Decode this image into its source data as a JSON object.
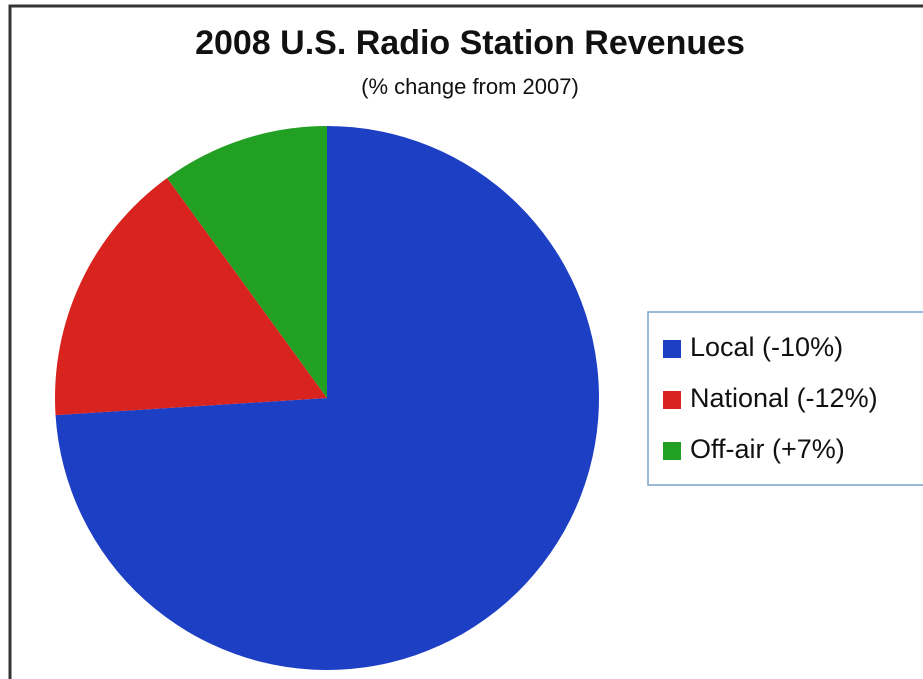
{
  "chart_data": {
    "type": "pie",
    "title": "2008 U.S. Radio Station Revenues",
    "subtitle": "(% change from 2007)",
    "categories": [
      "Local (-10%)",
      "National (-12%)",
      "Off-air (+7%)"
    ],
    "values": [
      74,
      16,
      10
    ],
    "colors": [
      "#1d3fc4",
      "#d8231f",
      "#22a024"
    ],
    "legend": "right"
  }
}
